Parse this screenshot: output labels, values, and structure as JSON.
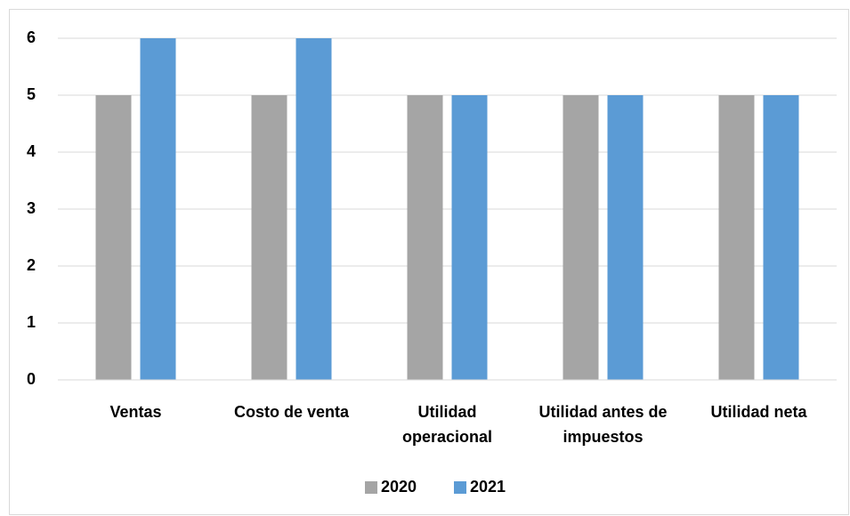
{
  "chart_data": {
    "type": "bar",
    "categories": [
      "Ventas",
      "Costo de venta",
      "Utilidad operacional",
      "Utilidad antes de impuestos",
      "Utilidad neta"
    ],
    "series": [
      {
        "name": "2020",
        "color": "#a5a5a5",
        "values": [
          5,
          5,
          5,
          5,
          5
        ]
      },
      {
        "name": "2021",
        "color": "#5b9bd5",
        "values": [
          6,
          6,
          5,
          5,
          5
        ]
      }
    ],
    "ylim": [
      0,
      6
    ],
    "yticks": [
      0,
      1,
      2,
      3,
      4,
      5,
      6
    ],
    "grid": true,
    "legend": "bottom"
  }
}
